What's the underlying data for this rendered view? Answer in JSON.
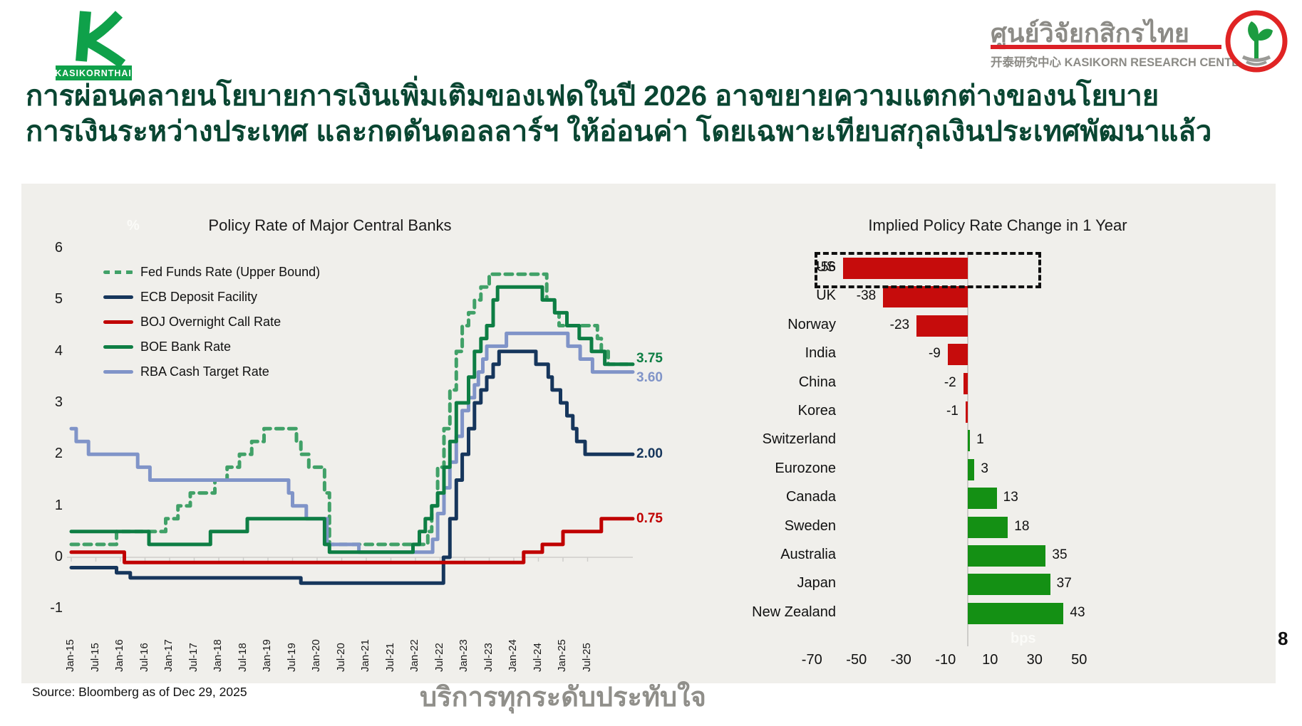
{
  "header": {
    "brand_left": {
      "name": "KASIKORNTHAI"
    },
    "brand_right": {
      "thai_name": "ศูนย์วิจัยกสิกรไทย",
      "subtitle": "开泰研究中心 KASIKORN RESEARCH CENTER"
    },
    "title_line1": "การผ่อนคลายนโยบายการเงินเพิ่มเติมของเฟดในปี 2026 อาจขยายความแตกต่างของนโยบาย",
    "title_line2": "การเงินระหว่างประเทศ และกดดันดอลลาร์ฯ ให้อ่อนค่า โดยเฉพาะเทียบสกุลเงินประเทศพัฒนาแล้ว"
  },
  "chart_data": [
    {
      "type": "line",
      "title": "Policy Rate of Major Central Banks",
      "y_unit": "%",
      "ylim": [
        -1,
        6
      ],
      "y_ticks": [
        6,
        5,
        4,
        3,
        2,
        1,
        0,
        -1
      ],
      "x_ticks": [
        "Jan-15",
        "Jul-15",
        "Jan-16",
        "Jul-16",
        "Jan-17",
        "Jul-17",
        "Jan-18",
        "Jul-18",
        "Jan-19",
        "Jul-19",
        "Jan-20",
        "Jul-20",
        "Jan-21",
        "Jul-21",
        "Jan-22",
        "Jul-22",
        "Jan-23",
        "Jul-23",
        "Jan-24",
        "Jul-24",
        "Jan-25",
        "Jul-25"
      ],
      "x_note": "points are [years since Jan-2015, rate %], stepped",
      "legend_position": "top-left",
      "series": [
        {
          "name": "Fed Funds Rate (Upper Bound)",
          "color": "#41a168",
          "dash": true,
          "points": [
            [
              0,
              0.25
            ],
            [
              0.92,
              0.5
            ],
            [
              1.92,
              0.75
            ],
            [
              2.17,
              1.0
            ],
            [
              2.42,
              1.25
            ],
            [
              2.92,
              1.5
            ],
            [
              3.17,
              1.75
            ],
            [
              3.42,
              2.0
            ],
            [
              3.67,
              2.25
            ],
            [
              3.92,
              2.5
            ],
            [
              4.58,
              2.25
            ],
            [
              4.67,
              2.0
            ],
            [
              4.83,
              1.75
            ],
            [
              5.15,
              1.25
            ],
            [
              5.25,
              0.25
            ],
            [
              7.25,
              0.5
            ],
            [
              7.33,
              1.0
            ],
            [
              7.45,
              1.75
            ],
            [
              7.58,
              2.5
            ],
            [
              7.7,
              3.25
            ],
            [
              7.83,
              4.0
            ],
            [
              7.95,
              4.5
            ],
            [
              8.08,
              4.75
            ],
            [
              8.2,
              5.0
            ],
            [
              8.33,
              5.25
            ],
            [
              8.5,
              5.5
            ],
            [
              9.67,
              5.0
            ],
            [
              9.83,
              4.75
            ],
            [
              9.92,
              4.5
            ],
            [
              10.7,
              4.25
            ],
            [
              10.78,
              4.0
            ],
            [
              10.92,
              3.75
            ]
          ],
          "end_label": null,
          "label_offset": 0
        },
        {
          "name": "ECB Deposit Facility",
          "color": "#16365c",
          "dash": false,
          "points": [
            [
              0,
              -0.2
            ],
            [
              0.92,
              -0.3
            ],
            [
              1.2,
              -0.4
            ],
            [
              4.67,
              -0.5
            ],
            [
              7.57,
              0.0
            ],
            [
              7.7,
              0.75
            ],
            [
              7.83,
              1.5
            ],
            [
              7.95,
              2.0
            ],
            [
              8.08,
              2.5
            ],
            [
              8.2,
              3.0
            ],
            [
              8.33,
              3.25
            ],
            [
              8.45,
              3.5
            ],
            [
              8.58,
              3.75
            ],
            [
              8.7,
              4.0
            ],
            [
              9.45,
              3.75
            ],
            [
              9.7,
              3.5
            ],
            [
              9.78,
              3.25
            ],
            [
              9.95,
              3.0
            ],
            [
              10.08,
              2.75
            ],
            [
              10.2,
              2.5
            ],
            [
              10.28,
              2.25
            ],
            [
              10.45,
              2.0
            ]
          ],
          "end_label": "2.00",
          "label_offset": 0
        },
        {
          "name": "BOJ Overnight Call Rate",
          "color": "#c00000",
          "dash": false,
          "points": [
            [
              0,
              0.1
            ],
            [
              1.08,
              -0.1
            ],
            [
              9.2,
              0.1
            ],
            [
              9.58,
              0.25
            ],
            [
              10.0,
              0.5
            ],
            [
              10.78,
              0.75
            ]
          ],
          "end_label": "0.75",
          "label_offset": 0
        },
        {
          "name": "BOE Bank Rate",
          "color": "#0e7e44",
          "dash": false,
          "points": [
            [
              0,
              0.5
            ],
            [
              1.58,
              0.25
            ],
            [
              2.83,
              0.5
            ],
            [
              3.58,
              0.75
            ],
            [
              5.15,
              0.25
            ],
            [
              5.25,
              0.1
            ],
            [
              6.95,
              0.25
            ],
            [
              7.08,
              0.5
            ],
            [
              7.2,
              0.75
            ],
            [
              7.33,
              1.0
            ],
            [
              7.45,
              1.25
            ],
            [
              7.58,
              1.75
            ],
            [
              7.7,
              2.25
            ],
            [
              7.83,
              3.0
            ],
            [
              8.08,
              3.5
            ],
            [
              8.2,
              4.0
            ],
            [
              8.33,
              4.25
            ],
            [
              8.45,
              4.5
            ],
            [
              8.58,
              5.0
            ],
            [
              8.67,
              5.25
            ],
            [
              9.58,
              5.0
            ],
            [
              9.83,
              4.75
            ],
            [
              10.08,
              4.5
            ],
            [
              10.33,
              4.25
            ],
            [
              10.58,
              4.0
            ],
            [
              10.85,
              3.75
            ]
          ],
          "end_label": "3.75",
          "label_offset": -8
        },
        {
          "name": "RBA Cash Target Rate",
          "color": "#8094c8",
          "dash": false,
          "points": [
            [
              0,
              2.5
            ],
            [
              0.1,
              2.25
            ],
            [
              0.35,
              2.0
            ],
            [
              1.35,
              1.75
            ],
            [
              1.6,
              1.5
            ],
            [
              4.42,
              1.25
            ],
            [
              4.5,
              1.0
            ],
            [
              4.78,
              0.75
            ],
            [
              5.2,
              0.25
            ],
            [
              5.85,
              0.1
            ],
            [
              7.35,
              0.35
            ],
            [
              7.45,
              0.85
            ],
            [
              7.58,
              1.35
            ],
            [
              7.7,
              1.85
            ],
            [
              7.83,
              2.35
            ],
            [
              7.95,
              2.85
            ],
            [
              8.08,
              3.1
            ],
            [
              8.2,
              3.35
            ],
            [
              8.28,
              3.6
            ],
            [
              8.37,
              3.85
            ],
            [
              8.45,
              4.1
            ],
            [
              8.85,
              4.35
            ],
            [
              10.1,
              4.1
            ],
            [
              10.35,
              3.85
            ],
            [
              10.6,
              3.6
            ]
          ],
          "end_label": "3.60",
          "label_offset": 8
        }
      ]
    },
    {
      "type": "bar",
      "orientation": "horizontal",
      "title": "Implied Policy Rate Change in 1 Year",
      "xlabel": "bps",
      "xlim": [
        -70,
        50
      ],
      "x_ticks": [
        -70,
        -50,
        -30,
        -10,
        10,
        30,
        50
      ],
      "categories": [
        "US",
        "UK",
        "Norway",
        "India",
        "China",
        "Korea",
        "Switzerland",
        "Eurozone",
        "Canada",
        "Sweden",
        "Australia",
        "Japan",
        "New Zealand"
      ],
      "values": [
        -56,
        -38,
        -23,
        -9,
        -2,
        -1,
        1,
        3,
        13,
        18,
        35,
        37,
        43
      ],
      "negative_color": "#c60c0c",
      "positive_color": "#149014",
      "highlighted_category": "US"
    }
  ],
  "footer": {
    "source": "Source: Bloomberg as of Dec 29, 2025",
    "slogan": "บริการทุกระดับประทับใจ",
    "page_number": "8"
  }
}
